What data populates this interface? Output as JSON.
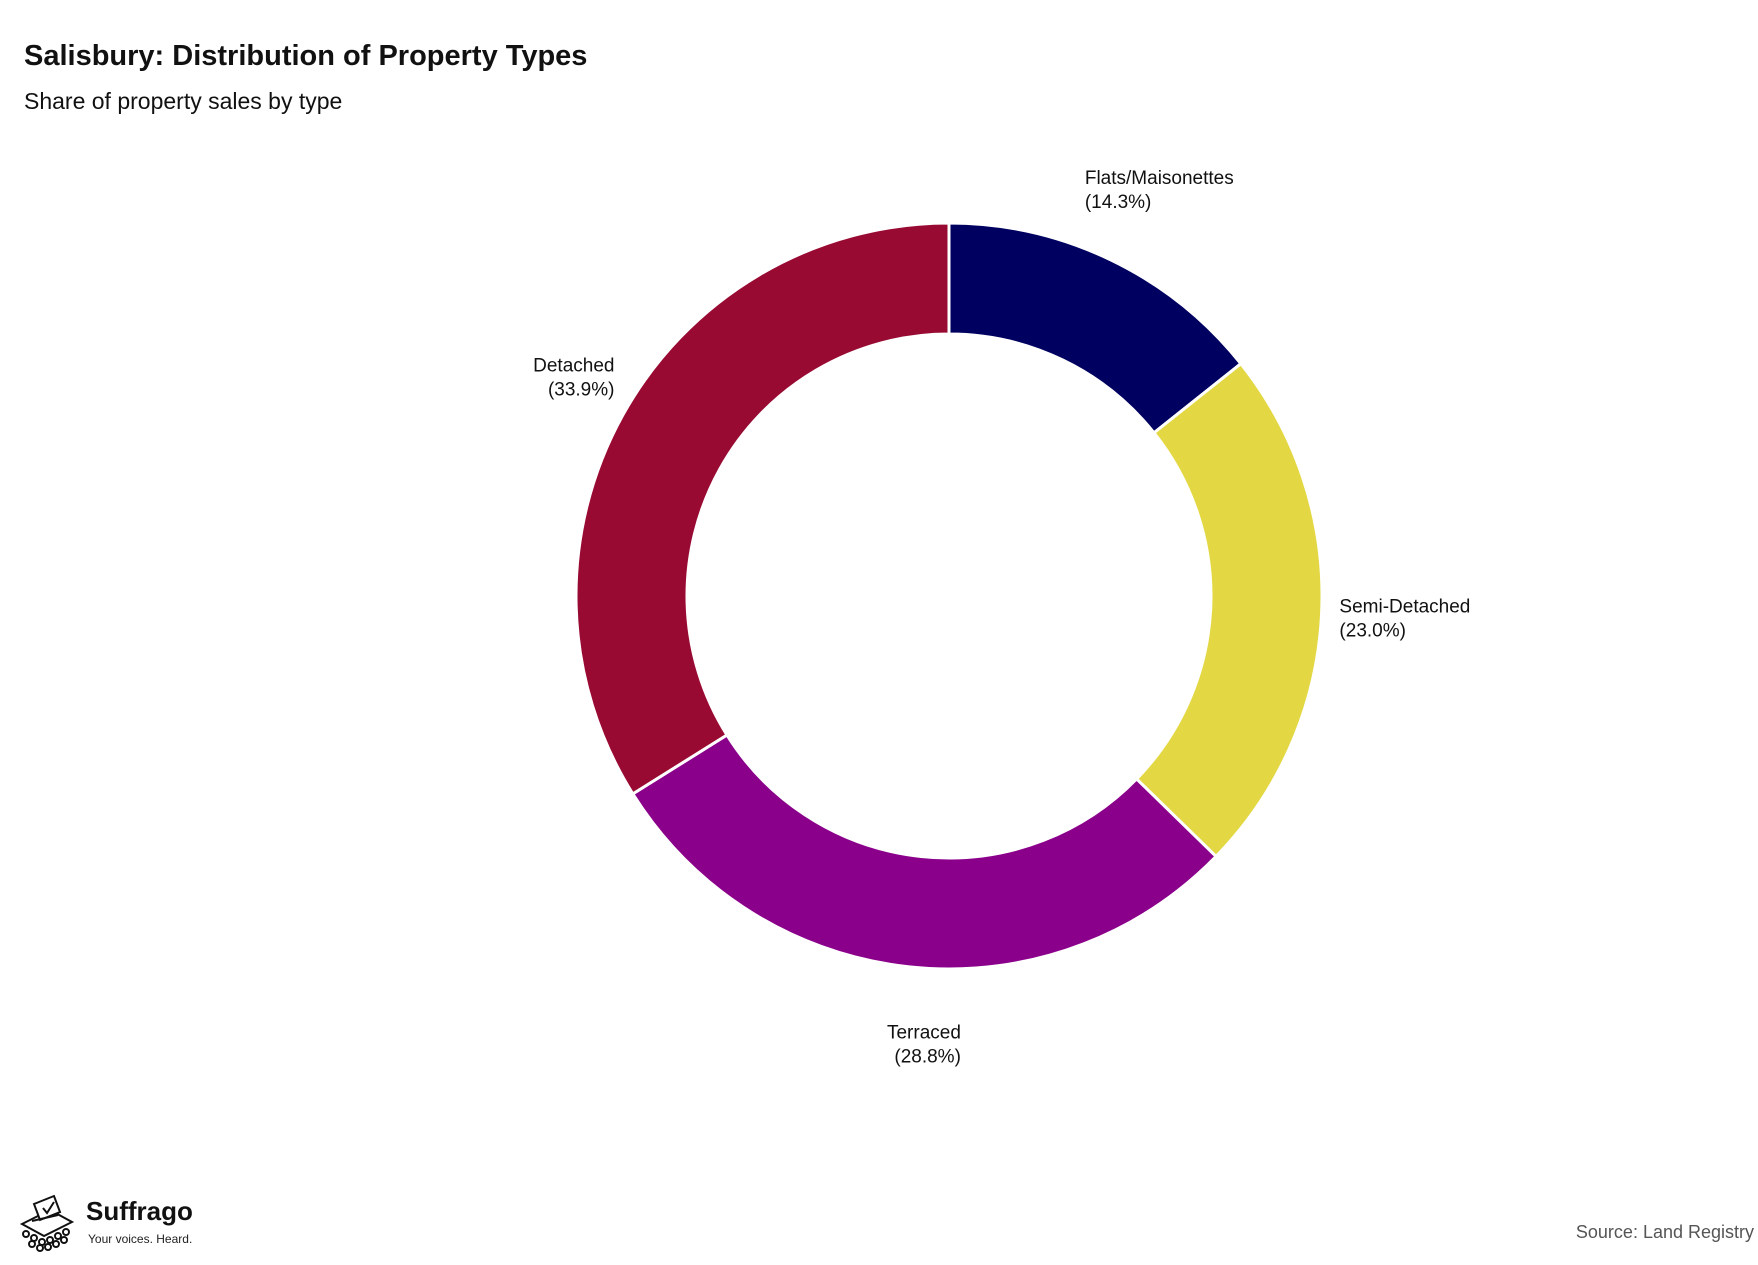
{
  "title": "Salisbury: Distribution of Property Types",
  "subtitle": "Share of property sales by type",
  "source": "Source: Land Registry",
  "brand": {
    "name": "Suffrago",
    "tagline": "Your voices. Heard."
  },
  "chart_data": {
    "type": "pie",
    "donut": true,
    "title": "Salisbury: Distribution of Property Types",
    "subtitle": "Share of property sales by type",
    "categories": [
      "Flats/Maisonettes",
      "Semi-Detached",
      "Terraced",
      "Detached"
    ],
    "values": [
      14.3,
      23.0,
      28.8,
      33.9
    ],
    "value_labels": [
      "(14.3%)",
      "(23.0%)",
      "(28.8%)",
      "(33.9%)"
    ],
    "colors": [
      "#000060",
      "#E3D843",
      "#8B008B",
      "#990A33"
    ],
    "start": "12 o'clock",
    "direction": "clockwise",
    "legend": "none"
  }
}
